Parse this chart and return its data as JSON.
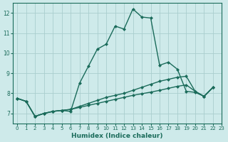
{
  "xlabel": "Humidex (Indice chaleur)",
  "bg_color": "#ceeaea",
  "grid_color": "#aacece",
  "line_color": "#1a6b5a",
  "xlim": [
    -0.5,
    23
  ],
  "ylim": [
    6.5,
    12.5
  ],
  "yticks": [
    7,
    8,
    9,
    10,
    11,
    12
  ],
  "xticks": [
    0,
    1,
    2,
    3,
    4,
    5,
    6,
    7,
    8,
    9,
    10,
    11,
    12,
    13,
    14,
    15,
    16,
    17,
    18,
    19,
    20,
    21,
    22,
    23
  ],
  "line1_x": [
    0,
    1,
    2,
    3,
    4,
    5,
    6,
    7,
    8,
    9,
    10,
    11,
    12,
    13,
    14,
    15,
    16,
    17,
    18,
    19,
    20,
    21,
    22
  ],
  "line1_y": [
    7.75,
    7.6,
    6.85,
    7.0,
    7.1,
    7.15,
    7.1,
    8.5,
    9.35,
    10.2,
    10.45,
    11.35,
    11.2,
    12.2,
    11.8,
    11.75,
    9.4,
    9.55,
    9.2,
    8.1,
    8.05,
    7.85,
    8.3
  ],
  "line2_x": [
    0,
    1,
    2,
    3,
    4,
    5,
    6,
    7,
    8,
    9,
    10,
    11,
    12,
    13,
    14,
    15,
    16,
    17,
    18,
    19,
    20,
    21,
    22
  ],
  "line2_y": [
    7.75,
    7.6,
    6.85,
    7.0,
    7.1,
    7.15,
    7.2,
    7.35,
    7.5,
    7.65,
    7.8,
    7.9,
    8.0,
    8.15,
    8.3,
    8.45,
    8.6,
    8.7,
    8.8,
    8.85,
    8.1,
    7.85,
    8.3
  ],
  "line3_x": [
    0,
    1,
    2,
    3,
    4,
    5,
    6,
    7,
    8,
    9,
    10,
    11,
    12,
    13,
    14,
    15,
    16,
    17,
    18,
    19,
    20,
    21,
    22
  ],
  "line3_y": [
    7.75,
    7.6,
    6.85,
    7.0,
    7.1,
    7.15,
    7.2,
    7.3,
    7.4,
    7.5,
    7.6,
    7.7,
    7.8,
    7.9,
    7.98,
    8.06,
    8.15,
    8.25,
    8.35,
    8.42,
    8.1,
    7.85,
    8.3
  ],
  "marker": "D",
  "markersize": 2.5,
  "linewidth": 1.0
}
